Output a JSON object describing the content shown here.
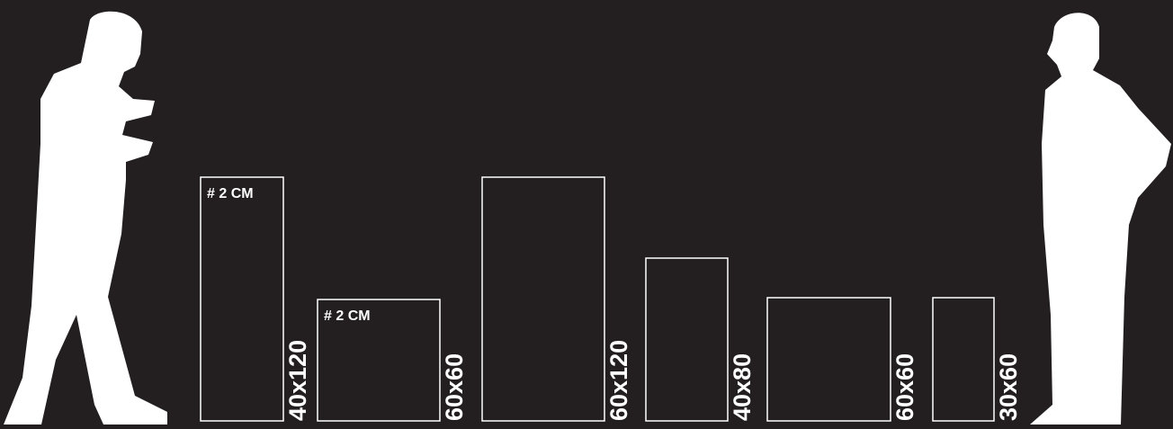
{
  "frames": [
    {
      "size": "40x120",
      "note": "# 2 CM"
    },
    {
      "size": "60x60",
      "note": "# 2 CM"
    },
    {
      "size": "60x120"
    },
    {
      "size": "40x80"
    },
    {
      "size": "60x60"
    },
    {
      "size": "30x60"
    }
  ]
}
